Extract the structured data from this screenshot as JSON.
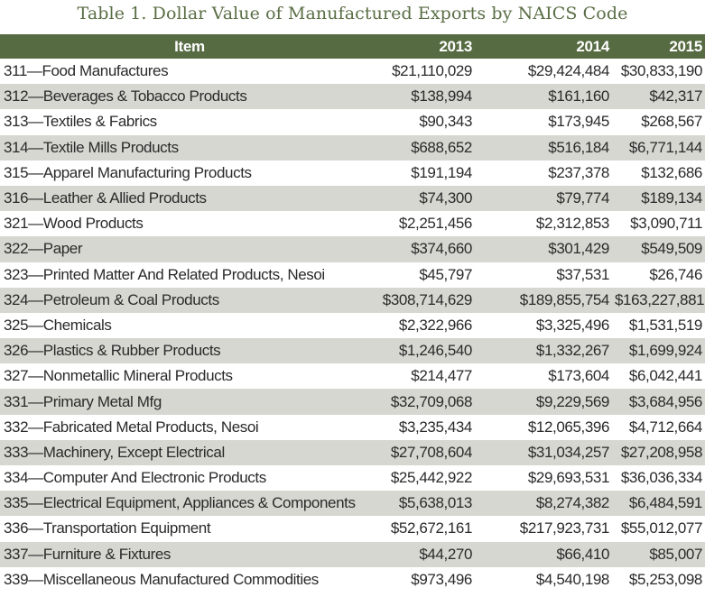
{
  "title": "Table 1. Dollar Value of Manufactured Exports by NAICS Code",
  "colors": {
    "header_bg": "#566b42",
    "title": "#5a6e45",
    "alt_row": "#d7d7d1"
  },
  "columns": [
    "Item",
    "2013",
    "2014",
    "2015"
  ],
  "rows": [
    [
      "311—Food Manufactures",
      "$21,110,029",
      "$29,424,484",
      "$30,833,190"
    ],
    [
      "312—Beverages & Tobacco Products",
      "$138,994",
      "$161,160",
      "$42,317"
    ],
    [
      "313—Textiles & Fabrics",
      "$90,343",
      "$173,945",
      "$268,567"
    ],
    [
      "314—Textile Mills Products",
      "$688,652",
      "$516,184",
      "$6,771,144"
    ],
    [
      "315—Apparel Manufacturing Products",
      "$191,194",
      "$237,378",
      "$132,686"
    ],
    [
      "316—Leather & Allied Products",
      "$74,300",
      "$79,774",
      "$189,134"
    ],
    [
      "321—Wood Products",
      "$2,251,456",
      "$2,312,853",
      "$3,090,711"
    ],
    [
      "322—Paper",
      "$374,660",
      "$301,429",
      "$549,509"
    ],
    [
      "323—Printed Matter And Related Products, Nesoi",
      "$45,797",
      "$37,531",
      "$26,746"
    ],
    [
      "324—Petroleum & Coal Products",
      "$308,714,629",
      "$189,855,754",
      "$163,227,881"
    ],
    [
      "325—Chemicals",
      "$2,322,966",
      "$3,325,496",
      "$1,531,519"
    ],
    [
      "326—Plastics & Rubber Products",
      "$1,246,540",
      "$1,332,267",
      "$1,699,924"
    ],
    [
      "327—Nonmetallic Mineral Products",
      "$214,477",
      "$173,604",
      "$6,042,441"
    ],
    [
      "331—Primary Metal Mfg",
      "$32,709,068",
      "$9,229,569",
      "$3,684,956"
    ],
    [
      "332—Fabricated Metal Products, Nesoi",
      "$3,235,434",
      "$12,065,396",
      "$4,712,664"
    ],
    [
      "333—Machinery, Except Electrical",
      "$27,708,604",
      "$31,034,257",
      "$27,208,958"
    ],
    [
      "334—Computer And Electronic Products",
      "$25,442,922",
      "$29,693,531",
      "$36,036,334"
    ],
    [
      "335—Electrical Equipment, Appliances & Components",
      "$5,638,013",
      "$8,274,382",
      "$6,484,591"
    ],
    [
      "336—Transportation Equipment",
      "$52,672,161",
      "$217,923,731",
      "$55,012,077"
    ],
    [
      "337—Furniture & Fixtures",
      "$44,270",
      "$66,410",
      "$85,007"
    ],
    [
      "339—Miscellaneous Manufactured Commodities",
      "$973,496",
      "$4,540,198",
      "$5,253,098"
    ]
  ]
}
